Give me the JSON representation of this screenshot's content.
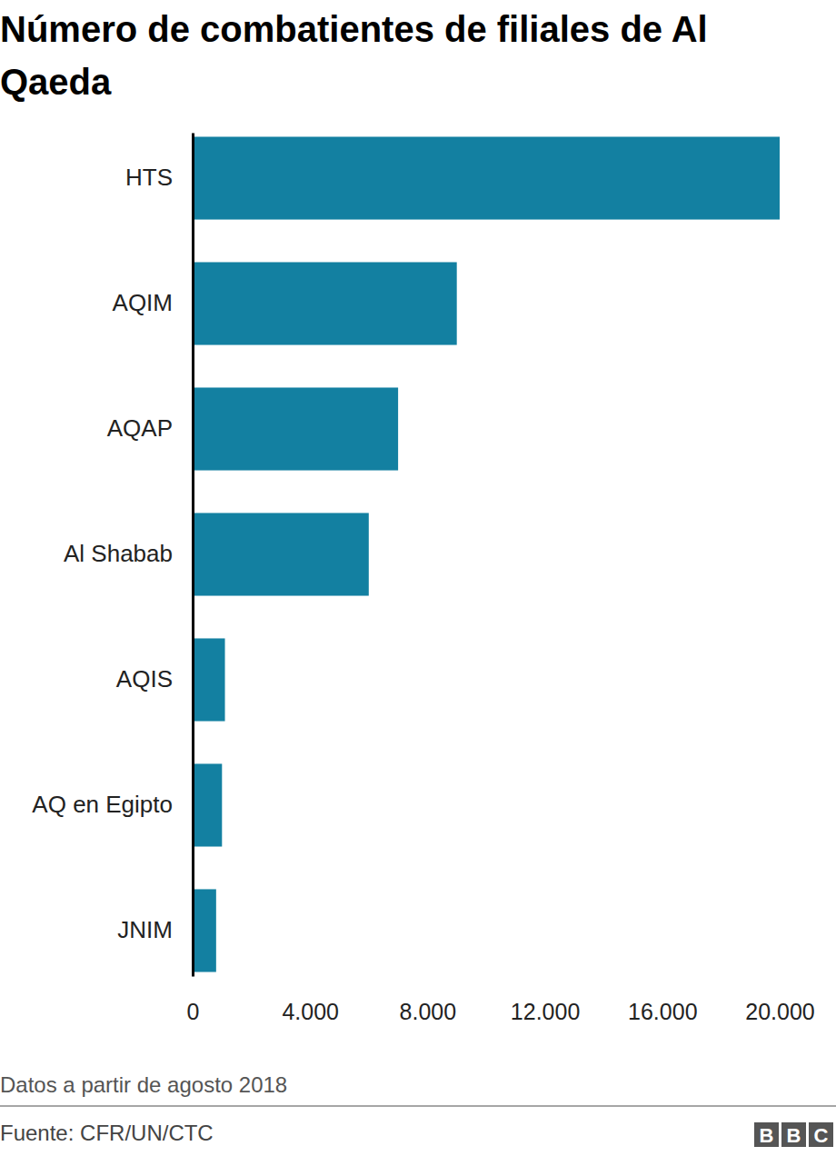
{
  "chart_data": {
    "type": "bar",
    "orientation": "horizontal",
    "title": "Número de combatientes de filiales de Al Qaeda",
    "categories": [
      "HTS",
      "AQIM",
      "AQAP",
      "Al Shabab",
      "AQIS",
      "AQ en Egipto",
      "JNIM"
    ],
    "values": [
      20000,
      9000,
      7000,
      6000,
      1100,
      1000,
      800
    ],
    "color": "#1380a1",
    "xlim": [
      0,
      20000
    ],
    "xticks": [
      0,
      {
        "value": 4000,
        "label": "4.000"
      },
      {
        "value": 8000,
        "label": "8.000"
      },
      {
        "value": 12000,
        "label": "12.000"
      },
      {
        "value": 16000,
        "label": "16.000"
      },
      {
        "value": 20000,
        "label": "20.000"
      }
    ],
    "grid": false,
    "note": "Datos a partir de agosto 2018",
    "source": "Fuente: CFR/UN/CTC",
    "logo": "BBC"
  }
}
